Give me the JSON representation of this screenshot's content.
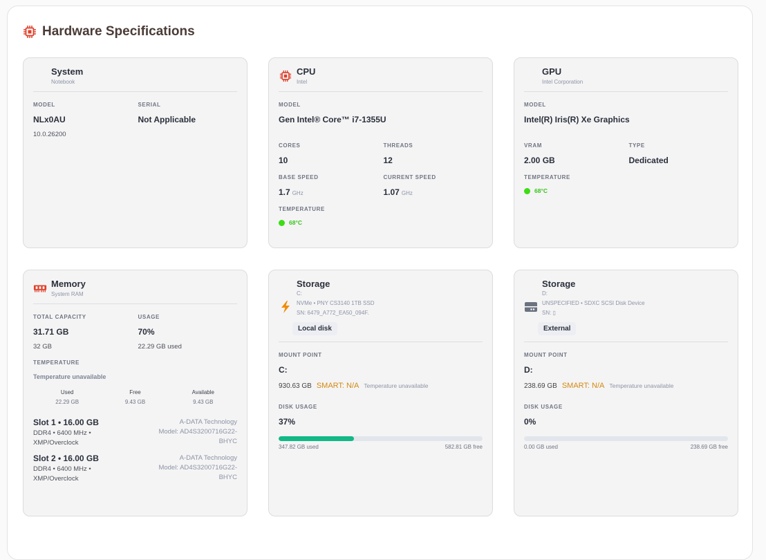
{
  "header": {
    "title": "Hardware Specifications"
  },
  "cards": [
    {
      "title": "System",
      "subtitle": "Notebook",
      "rows": [
        [
          {
            "label": "MODEL",
            "value": "NLx0AU",
            "note": "10.0.26200"
          },
          {
            "label": "SERIAL",
            "value": "Not Applicable"
          }
        ]
      ]
    },
    {
      "title": "CPU",
      "subtitle": "Intel",
      "rows": [
        [
          {
            "label": "MODEL",
            "value": "Gen Intel® Core™ i7-1355U"
          }
        ],
        [
          {
            "label": "CORES",
            "value": 10
          },
          {
            "label": "THREADS",
            "value": 12
          }
        ],
        [
          {
            "label": "BASE SPEED",
            "value": 1.7,
            "unit": "GHz"
          },
          {
            "label": "CURRENT SPEED",
            "value": 1.07,
            "unit": "GHz"
          }
        ],
        [
          {
            "label": "TEMPERATURE",
            "temp": "68°C"
          }
        ]
      ]
    },
    {
      "title": "GPU",
      "subtitle": "Intel Corporation",
      "rows": [
        [
          {
            "label": "MODEL",
            "value": "Intel(R) Iris(R) Xe Graphics"
          }
        ],
        [
          {
            "label": "VRAM",
            "value": "2.00 GB"
          },
          {
            "label": "TYPE",
            "value": "Dedicated"
          }
        ],
        [
          {
            "label": "TEMPERATURE",
            "temp": "68°C"
          }
        ]
      ]
    },
    {
      "title": "Memory",
      "subtitle": "System RAM",
      "rows": [
        [
          {
            "label": "TOTAL CAPACITY",
            "value": "31.71 GB",
            "note": "32 GB"
          },
          {
            "label": "USAGE",
            "value": "70%",
            "note": "22.29 GB used"
          }
        ],
        [
          {
            "label": "TEMPERATURE",
            "muted": "Temperature unavailable"
          }
        ]
      ],
      "stats": [
        {
          "label": "Used",
          "value": "22.29 GB"
        },
        {
          "label": "Free",
          "value": "9.43 GB"
        },
        {
          "label": "Available",
          "value": "9.43 GB"
        }
      ],
      "slots": [
        {
          "title": "Slot 1 • 16.00 GB",
          "detail": "DDR4 • 6400 MHz • XMP/Overclock",
          "vendor": "A-DATA Technology",
          "model": "Model: AD4S3200716G22-BHYC"
        },
        {
          "title": "Slot 2 • 16.00 GB",
          "detail": "DDR4 • 6400 MHz • XMP/Overclock",
          "vendor": "A-DATA Technology",
          "model": "Model: AD4S3200716G22-BHYC"
        }
      ]
    },
    {
      "title": "Storage",
      "drive": "C:",
      "model": "NVMe • PNY CS3140 1TB SSD",
      "serial": "SN: 6479_A772_EA50_094F.",
      "badge": "Local disk",
      "mount_label": "MOUNT POINT",
      "mount": "C:",
      "capacity": "930.63 GB",
      "smart": "SMART: N/A",
      "temperature": "Temperature unavailable",
      "usage_label": "DISK USAGE",
      "usage": {
        "value": 37,
        "label": "37%"
      },
      "used": "347.82 GB used",
      "free": "582.81 GB free"
    },
    {
      "title": "Storage",
      "drive": "D:",
      "model": "UNSPECIFIED • SDXC SCSI Disk Device",
      "serial": "SN: ▯",
      "badge": "External",
      "mount_label": "MOUNT POINT",
      "mount": "D:",
      "capacity": "238.69 GB",
      "smart": "SMART: N/A",
      "temperature": "Temperature unavailable",
      "usage_label": "DISK USAGE",
      "usage": {
        "value": 0,
        "label": "0%"
      },
      "used": "0.00 GB used",
      "free": "238.69 GB free"
    }
  ]
}
